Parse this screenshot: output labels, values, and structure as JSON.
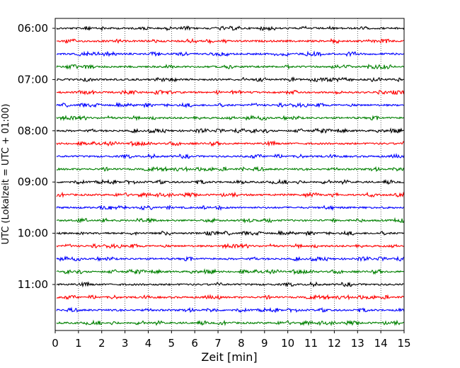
{
  "chart_data": {
    "type": "line",
    "xlabel": "Zeit  [min]",
    "ylabel": "UTC (Lokalzeit = UTC + 01:00)",
    "xlim": [
      0,
      15
    ],
    "x_ticks": [
      "0",
      "1",
      "2",
      "3",
      "4",
      "5",
      "6",
      "7",
      "8",
      "9",
      "10",
      "11",
      "12",
      "13",
      "14",
      "15"
    ],
    "y_ticks": [
      "06:00",
      "07:00",
      "08:00",
      "09:00",
      "10:00",
      "11:00"
    ],
    "trace_start_times": [
      "06:00",
      "06:15",
      "06:30",
      "06:45",
      "07:00",
      "07:15",
      "07:30",
      "07:45",
      "08:00",
      "08:15",
      "08:30",
      "08:45",
      "09:00",
      "09:15",
      "09:30",
      "09:45",
      "10:00",
      "10:15",
      "10:30",
      "10:45",
      "11:00",
      "11:15",
      "11:30",
      "11:45"
    ],
    "trace_colors": [
      "#000000",
      "#ff0000",
      "#0000ff",
      "#008000"
    ],
    "grid": {
      "x": true,
      "style": "dotted"
    },
    "legend": "none"
  }
}
